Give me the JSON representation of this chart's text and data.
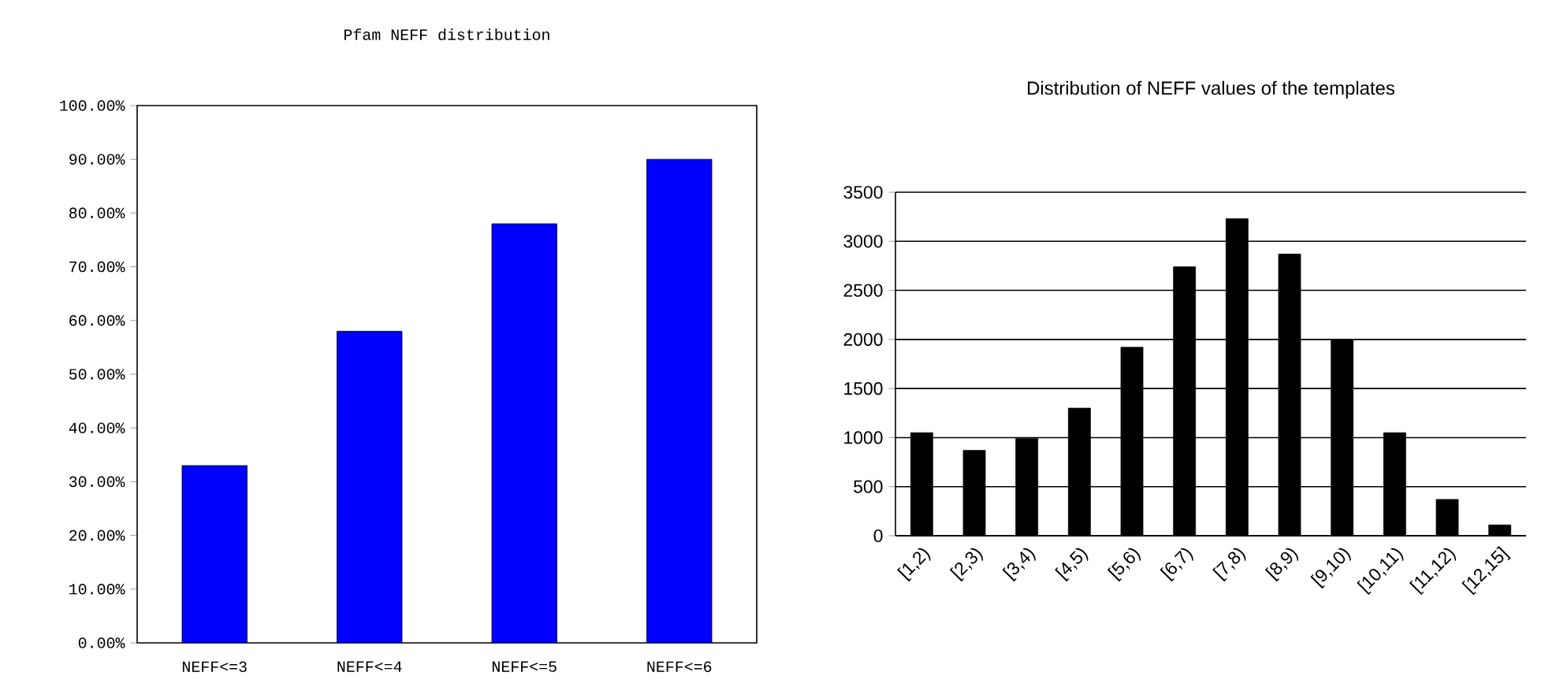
{
  "chart_data": [
    {
      "type": "bar",
      "title": "Pfam NEFF distribution",
      "categories": [
        "NEFF<=3",
        "NEFF<=4",
        "NEFF<=5",
        "NEFF<=6"
      ],
      "values": [
        33,
        58,
        78,
        90
      ],
      "color": "#0000ff",
      "ylim": [
        0,
        100
      ],
      "yticks": [
        {
          "value": 0,
          "label": "0.00%"
        },
        {
          "value": 10,
          "label": "10.00%"
        },
        {
          "value": 20,
          "label": "20.00%"
        },
        {
          "value": 30,
          "label": "30.00%"
        },
        {
          "value": 40,
          "label": "40.00%"
        },
        {
          "value": 50,
          "label": "50.00%"
        },
        {
          "value": 60,
          "label": "60.00%"
        },
        {
          "value": 70,
          "label": "70.00%"
        },
        {
          "value": 80,
          "label": "80.00%"
        },
        {
          "value": 90,
          "label": "90.00%"
        },
        {
          "value": 100,
          "label": "100.00%"
        }
      ],
      "grid": false
    },
    {
      "type": "bar",
      "title": "Distribution of NEFF values of the templates",
      "categories": [
        "[1,2)",
        "[2,3)",
        "[3,4)",
        "[4,5)",
        "[5,6)",
        "[6,7)",
        "[7,8)",
        "[8,9)",
        "[9,10)",
        "[10,11)",
        "[11,12)",
        "[12,15]"
      ],
      "values": [
        1050,
        870,
        990,
        1300,
        1920,
        2740,
        3230,
        2870,
        2000,
        1050,
        370,
        110
      ],
      "color": "#000000",
      "ylim": [
        0,
        3500
      ],
      "yticks": [
        0,
        500,
        1000,
        1500,
        2000,
        2500,
        3000,
        3500
      ],
      "grid": "y"
    }
  ]
}
